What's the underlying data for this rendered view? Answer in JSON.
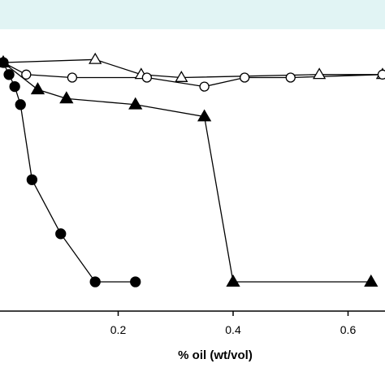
{
  "chart_data": {
    "type": "scatter",
    "title": "",
    "xlabel": "% oil (wt/vol)",
    "ylabel": "",
    "xlim": [
      0,
      0.66
    ],
    "ylim": [
      0,
      1.1
    ],
    "x_ticks": [
      0.2,
      0.4,
      0.6
    ],
    "x_tick_labels": [
      "0.2",
      "0.4",
      "0.6"
    ],
    "grid": false,
    "series": [
      {
        "marker": "open-triangle",
        "x": [
          0.0,
          0.16,
          0.24,
          0.31,
          0.55,
          0.66
        ],
        "y": [
          1.0,
          1.01,
          0.96,
          0.95,
          0.96,
          0.96
        ]
      },
      {
        "marker": "open-circle",
        "x": [
          0.0,
          0.04,
          0.12,
          0.25,
          0.35,
          0.42,
          0.5,
          0.66
        ],
        "y": [
          1.0,
          0.96,
          0.95,
          0.95,
          0.92,
          0.95,
          0.95,
          0.96
        ]
      },
      {
        "marker": "filled-triangle",
        "x": [
          0.0,
          0.06,
          0.11,
          0.23,
          0.35,
          0.4,
          0.64
        ],
        "y": [
          1.0,
          0.91,
          0.88,
          0.86,
          0.82,
          0.27,
          0.27
        ]
      },
      {
        "marker": "filled-circle",
        "x": [
          0.0,
          0.01,
          0.02,
          0.03,
          0.05,
          0.1,
          0.16,
          0.23
        ],
        "y": [
          1.0,
          0.96,
          0.92,
          0.86,
          0.61,
          0.43,
          0.27,
          0.27
        ]
      }
    ]
  }
}
